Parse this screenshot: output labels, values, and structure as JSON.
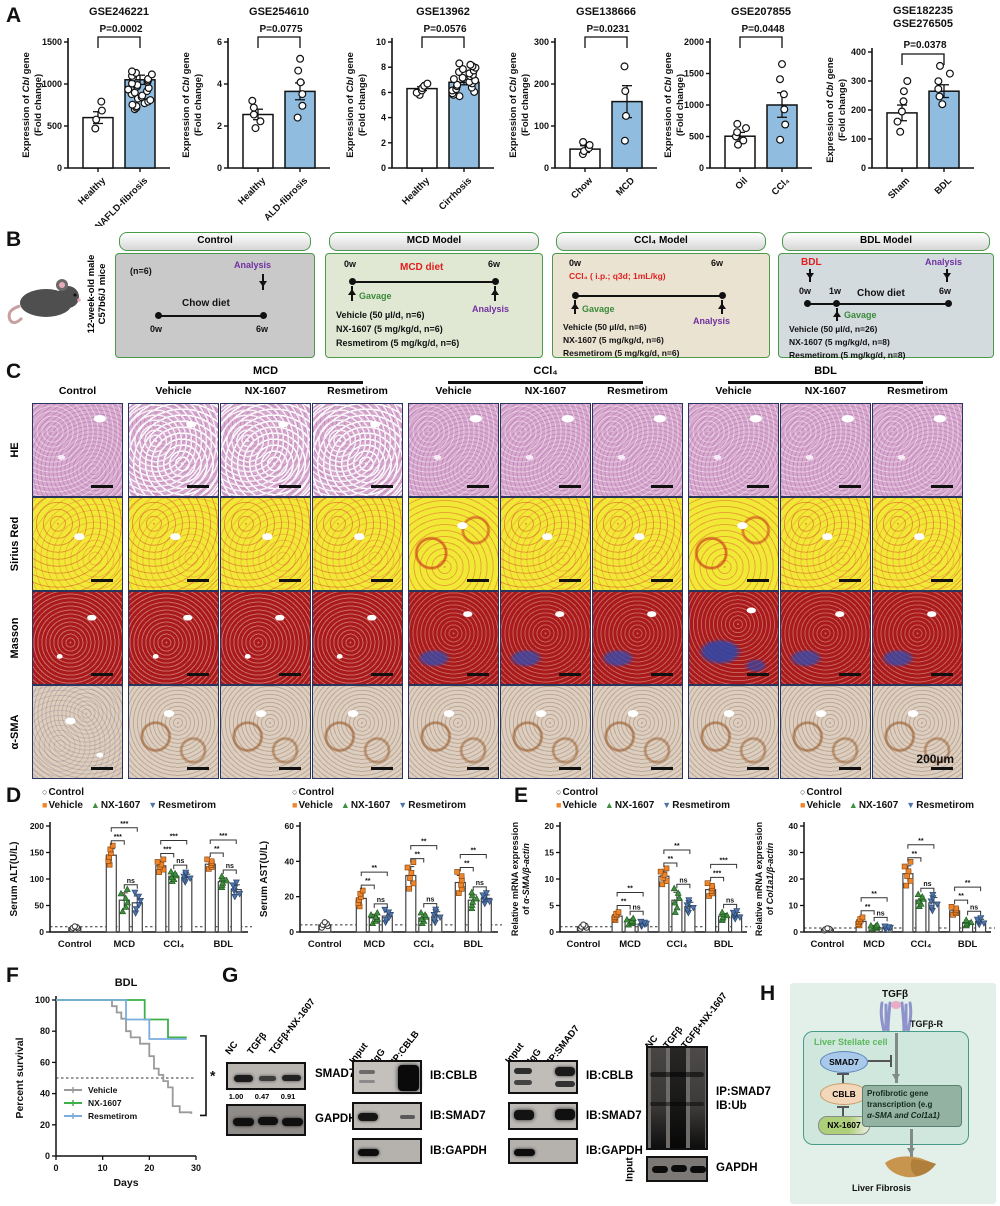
{
  "colors": {
    "bar_blue": "#8fbcdf",
    "vehicle_orange": "#f08428",
    "nx_green": "#3f8f3f",
    "res_blue": "#4f74a8",
    "survival_vehicle": "#9a9a9a",
    "survival_nx": "#3db04a",
    "survival_res": "#7badde",
    "analysis_purple": "#7030a0",
    "gavage_green": "#3a8a3a",
    "red_text": "#e02020"
  },
  "panelA": {
    "label": "A",
    "ylabel1": "Expression of Cbl gene",
    "ylabel2": "(Fold change)",
    "charts": [
      {
        "titles": [
          "GSE246221"
        ],
        "p": "P=0.0002",
        "ymax": 1500,
        "yticks": [
          0,
          500,
          1000,
          1500
        ],
        "cats": [
          "Healthy",
          "NAFLD-fibrosis"
        ],
        "values": [
          600,
          1050
        ],
        "errs": [
          70,
          55
        ],
        "cluster": [
          4,
          26
        ],
        "spread": [
          [
            470,
            790
          ],
          [
            700,
            1150
          ]
        ]
      },
      {
        "titles": [
          "GSE254610"
        ],
        "p": "P=0.0775",
        "ymax": 6,
        "yticks": [
          0,
          2,
          4,
          6
        ],
        "cats": [
          "Healthy",
          "ALD-fibrosis"
        ],
        "values": [
          2.55,
          3.65
        ],
        "errs": [
          0.25,
          0.4
        ],
        "cluster": [
          5,
          6
        ],
        "spread": [
          [
            1.9,
            3.2
          ],
          [
            2.4,
            5.2
          ]
        ]
      },
      {
        "titles": [
          "GSE13962"
        ],
        "p": "P=0.0576",
        "ymax": 10,
        "yticks": [
          0,
          2,
          4,
          6,
          8,
          10
        ],
        "cats": [
          "Healthy",
          "Cirrhosis"
        ],
        "values": [
          6.3,
          6.8
        ],
        "errs": [
          0.15,
          0.2
        ],
        "cluster": [
          6,
          24
        ],
        "spread": [
          [
            5.8,
            6.7
          ],
          [
            5.7,
            8.3
          ]
        ]
      },
      {
        "titles": [
          "GSE138666"
        ],
        "p": "P=0.0231",
        "ymax": 300,
        "yticks": [
          0,
          100,
          200,
          300
        ],
        "cats": [
          "Chow",
          "MCD"
        ],
        "values": [
          45,
          158
        ],
        "errs": [
          8,
          38
        ],
        "cluster": [
          5,
          4
        ],
        "spread": [
          [
            33,
            62
          ],
          [
            65,
            242
          ]
        ]
      },
      {
        "titles": [
          "GSE207855"
        ],
        "p": "P=0.0448",
        "ymax": 2000,
        "yticks": [
          0,
          500,
          1000,
          1500,
          2000
        ],
        "cats": [
          "Oil",
          "CCl₄"
        ],
        "values": [
          505,
          1000
        ],
        "errs": [
          60,
          195
        ],
        "cluster": [
          6,
          6
        ],
        "spread": [
          [
            370,
            700
          ],
          [
            450,
            1650
          ]
        ]
      },
      {
        "titles": [
          "GSE182235",
          "GSE276505"
        ],
        "p": "P=0.0378",
        "ymax": 400,
        "yticks": [
          0,
          100,
          200,
          300,
          400
        ],
        "cats": [
          "Sham",
          "BDL"
        ],
        "values": [
          190,
          265
        ],
        "errs": [
          27,
          22
        ],
        "cluster": [
          6,
          6
        ],
        "spread": [
          [
            125,
            300
          ],
          [
            220,
            352
          ]
        ]
      }
    ]
  },
  "panelB": {
    "label": "B",
    "mouse_line1": "12-week-old male",
    "mouse_line2": "C57b6/J mice",
    "control": {
      "title": "Control",
      "n": "(n=6)",
      "analysis": "Analysis",
      "diet": "Chow diet",
      "start": "0w",
      "end": "6w"
    },
    "mcd": {
      "title": "MCD Model",
      "start": "0w",
      "diet": "MCD diet",
      "end": "6w",
      "gavage": "Gavage",
      "analysis": "Analysis",
      "treat1": "Vehicle (50 µl/d, n=6)",
      "treat2": "NX-1607 (5 mg/kg/d, n=6)",
      "treat3": "Resmetirom (5 mg/kg/d, n=6)"
    },
    "ccl4": {
      "title": "CCl₄ Model",
      "start": "0w",
      "agent": "CCl₄ ( i.p.; q3d; 1mL/kg)",
      "end": "6w",
      "gavage": "Gavage",
      "analysis": "Analysis",
      "treat1": "Vehicle (50 µl/d, n=6)",
      "treat2": "NX-1607 (5 mg/kg/d, n=6)",
      "treat3": "Resmetirom (5 mg/kg/d, n=6)"
    },
    "bdl": {
      "title": "BDL Model",
      "bdl": "BDL",
      "analysis": "Analysis",
      "start": "0w",
      "mid": "1w",
      "diet": "Chow diet",
      "end": "6w",
      "gavage": "Gavage",
      "treat1": "Vehicle (50 µl/d, n=26)",
      "treat2": "NX-1607 (5 mg/kg/d, n=8)",
      "treat3": "Resmetirom (5 mg/kg/d, n=8)"
    }
  },
  "panelC": {
    "label": "C",
    "first_col": "Control",
    "groups": [
      {
        "name": "MCD",
        "cols": [
          "Vehicle",
          "NX-1607",
          "Resmetirom"
        ]
      },
      {
        "name": "CCl₄",
        "cols": [
          "Vehicle",
          "NX-1607",
          "Resmetirom"
        ]
      },
      {
        "name": "BDL",
        "cols": [
          "Vehicle",
          "NX-1607",
          "Resmetirom"
        ]
      }
    ],
    "rows": [
      "HE",
      "Sirius Red",
      "Masson",
      "α-SMA"
    ],
    "scalebar": "200µm"
  },
  "panelD": {
    "label": "D",
    "legend": {
      "control": "Control",
      "vehicle": "Vehicle",
      "nx": "NX-1607",
      "res": "Resmetirom"
    },
    "charts": [
      {
        "ylabel": [
          "Serum ALT(U/L)"
        ],
        "ymax": 200,
        "yticks": [
          0,
          50,
          100,
          150,
          200
        ],
        "baseline": 10,
        "group_labels": [
          "Control",
          "MCD",
          "CCl₄",
          "BDL"
        ],
        "control": {
          "value": 8,
          "err": 2
        },
        "groups": [
          {
            "values": [
              145,
              60,
              55
            ],
            "errs": [
              12,
              14,
              13
            ],
            "sigs": [
              "***",
              "ns",
              "***"
            ]
          },
          {
            "values": [
              125,
              105,
              103
            ],
            "errs": [
              8,
              6,
              6
            ],
            "sigs": [
              "***",
              "ns",
              "***"
            ]
          },
          {
            "values": [
              128,
              95,
              80
            ],
            "errs": [
              6,
              7,
              9
            ],
            "sigs": [
              "**",
              "ns",
              "***"
            ]
          }
        ]
      },
      {
        "ylabel": [
          "Serum AST(U/L)"
        ],
        "ymax": 60,
        "yticks": [
          0,
          20,
          40,
          60
        ],
        "baseline": 4,
        "group_labels": [
          "Control",
          "MCD",
          "CCl₄",
          "BDL"
        ],
        "control": {
          "value": 4,
          "err": 1.2
        },
        "groups": [
          {
            "values": [
              19,
              8,
              9
            ],
            "errs": [
              3,
              2,
              2.4
            ],
            "sigs": [
              "**",
              "ns",
              "**"
            ]
          },
          {
            "values": [
              32,
              8,
              9
            ],
            "errs": [
              5,
              2,
              2.5
            ],
            "sigs": [
              "**",
              "ns",
              "**"
            ]
          },
          {
            "values": [
              28,
              18,
              19
            ],
            "errs": [
              4,
              3,
              2
            ],
            "sigs": [
              "**",
              "ns",
              "**"
            ]
          }
        ]
      }
    ]
  },
  "panelE": {
    "label": "E",
    "legend": {
      "control": "Control",
      "vehicle": "Vehicle",
      "nx": "NX-1607",
      "res": "Resmetirom"
    },
    "charts": [
      {
        "ylabel": [
          "Relative mRNA expression",
          "of α-SMA/β-actin"
        ],
        "ymax": 20,
        "yticks": [
          0,
          5,
          10,
          15,
          20
        ],
        "baseline": 1,
        "group_labels": [
          "Control",
          "MCD",
          "CCl₄",
          "BDL"
        ],
        "control": {
          "value": 1,
          "err": 0.3
        },
        "groups": [
          {
            "values": [
              3,
              2,
              1.5
            ],
            "errs": [
              0.5,
              0.4,
              0.3
            ],
            "sigs": [
              "**",
              "ns",
              "**"
            ]
          },
          {
            "values": [
              10.5,
              6,
              4.8
            ],
            "errs": [
              1,
              1.5,
              0.8
            ],
            "sigs": [
              "**",
              "ns",
              "**"
            ]
          },
          {
            "values": [
              8,
              3,
              3.2
            ],
            "errs": [
              0.8,
              0.5,
              0.5
            ],
            "sigs": [
              "***",
              "ns",
              "***"
            ]
          }
        ]
      },
      {
        "ylabel": [
          "Relative mRNA expression",
          "of Col1a1/β-actin"
        ],
        "ymax": 40,
        "yticks": [
          0,
          10,
          20,
          30,
          40
        ],
        "baseline": 1.5,
        "group_labels": [
          "Control",
          "MCD",
          "CCl₄",
          "BDL"
        ],
        "control": {
          "value": 1,
          "err": 0.3
        },
        "groups": [
          {
            "values": [
              4,
              2,
              1.5
            ],
            "errs": [
              1,
              0.5,
              0.4
            ],
            "sigs": [
              "**",
              "ns",
              "**"
            ]
          },
          {
            "values": [
              22,
              12,
              11
            ],
            "errs": [
              3,
              1.5,
              2
            ],
            "sigs": [
              "**",
              "ns",
              "**"
            ]
          },
          {
            "values": [
              8,
              3.5,
              4
            ],
            "errs": [
              1,
              0.7,
              0.8
            ],
            "sigs": [
              "**",
              "ns",
              "**"
            ]
          }
        ]
      }
    ]
  },
  "panelF": {
    "label": "F",
    "title": "BDL",
    "ylabel": "Percent survival",
    "xlabel": "Days",
    "sig": "*",
    "xticks": [
      0,
      10,
      20,
      30
    ],
    "yticks": [
      0,
      20,
      40,
      60,
      80,
      100
    ],
    "series": [
      {
        "name": "Vehicle",
        "color": "#9a9a9a",
        "points": [
          [
            0,
            100
          ],
          [
            12,
            96
          ],
          [
            13,
            92
          ],
          [
            14,
            88
          ],
          [
            15,
            80
          ],
          [
            16,
            76
          ],
          [
            18,
            72
          ],
          [
            20,
            64
          ],
          [
            21,
            56
          ],
          [
            22,
            52
          ],
          [
            23,
            48
          ],
          [
            24,
            44
          ],
          [
            25,
            32
          ],
          [
            26.5,
            28
          ],
          [
            29,
            27
          ]
        ]
      },
      {
        "name": "NX-1607",
        "color": "#3db04a",
        "points": [
          [
            0,
            100
          ],
          [
            19,
            87.5
          ],
          [
            24,
            76
          ],
          [
            28,
            76
          ]
        ]
      },
      {
        "name": "Resmetirom",
        "color": "#7badde",
        "points": [
          [
            0,
            100
          ],
          [
            15,
            87.5
          ],
          [
            20,
            75
          ],
          [
            28,
            75
          ]
        ]
      }
    ]
  },
  "panelG": {
    "label": "G",
    "blot1": {
      "lane1": "NC",
      "lane2": "TGFβ",
      "lane3": "TGFβ+NX-1607",
      "band1": "SMAD7",
      "q1": "1.00",
      "q2": "0.47",
      "q3": "0.91",
      "band2": "GAPDH"
    },
    "blot2": {
      "lane1": "Input",
      "lane2": "IgG",
      "lane3": "IP:CBLB",
      "b1": "IB:CBLB",
      "b2": "IB:SMAD7",
      "b3": "IB:GAPDH"
    },
    "blot3": {
      "lane1": "Input",
      "lane2": "IgG",
      "lane3": "IP:SMAD7",
      "b1": "IB:CBLB",
      "b2": "IB:SMAD7",
      "b3": "IB:GAPDH"
    },
    "blot4": {
      "lane1": "NC",
      "lane2": "TGFβ",
      "lane3": "TGFβ+NX-1607",
      "ip": "IP:SMAD7",
      "ib": "IB:Ub",
      "input": "Input",
      "gapdh": "GAPDH"
    }
  },
  "panelH": {
    "label": "H",
    "tgfb": "TGFβ",
    "receptor": "TGFβ-R",
    "cell": "Liver Stellate cell",
    "smad7": "SMAD7",
    "cblb": "CBLB",
    "nx": "NX-1607",
    "pro1": "Profibrotic gene",
    "pro2": "transcription (e.g",
    "pro3": "α-SMA and Col1a1)",
    "outcome": "Liver Fibrosis"
  }
}
